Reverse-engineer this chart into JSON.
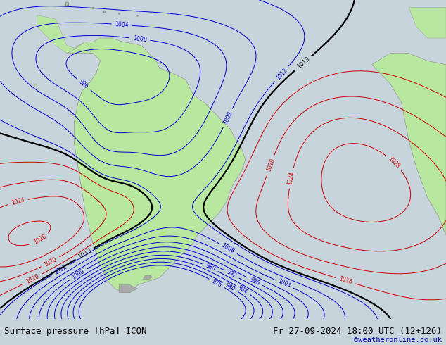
{
  "title_left": "Surface pressure [hPa] ICON",
  "title_right": "Fr 27-09-2024 18:00 UTC (12+126)",
  "watermark": "©weatheronline.co.uk",
  "background_color": "#c8d4dc",
  "land_color": "#b8e8a0",
  "land_edge_color": "#999999",
  "sea_color": "#c8d4dc",
  "font_size_title": 9,
  "font_size_labels": 6,
  "font_size_watermark": 7.5,
  "xlim": [
    -100,
    20
  ],
  "ylim": [
    -62,
    22
  ],
  "bar_color": "#e0e0e0"
}
